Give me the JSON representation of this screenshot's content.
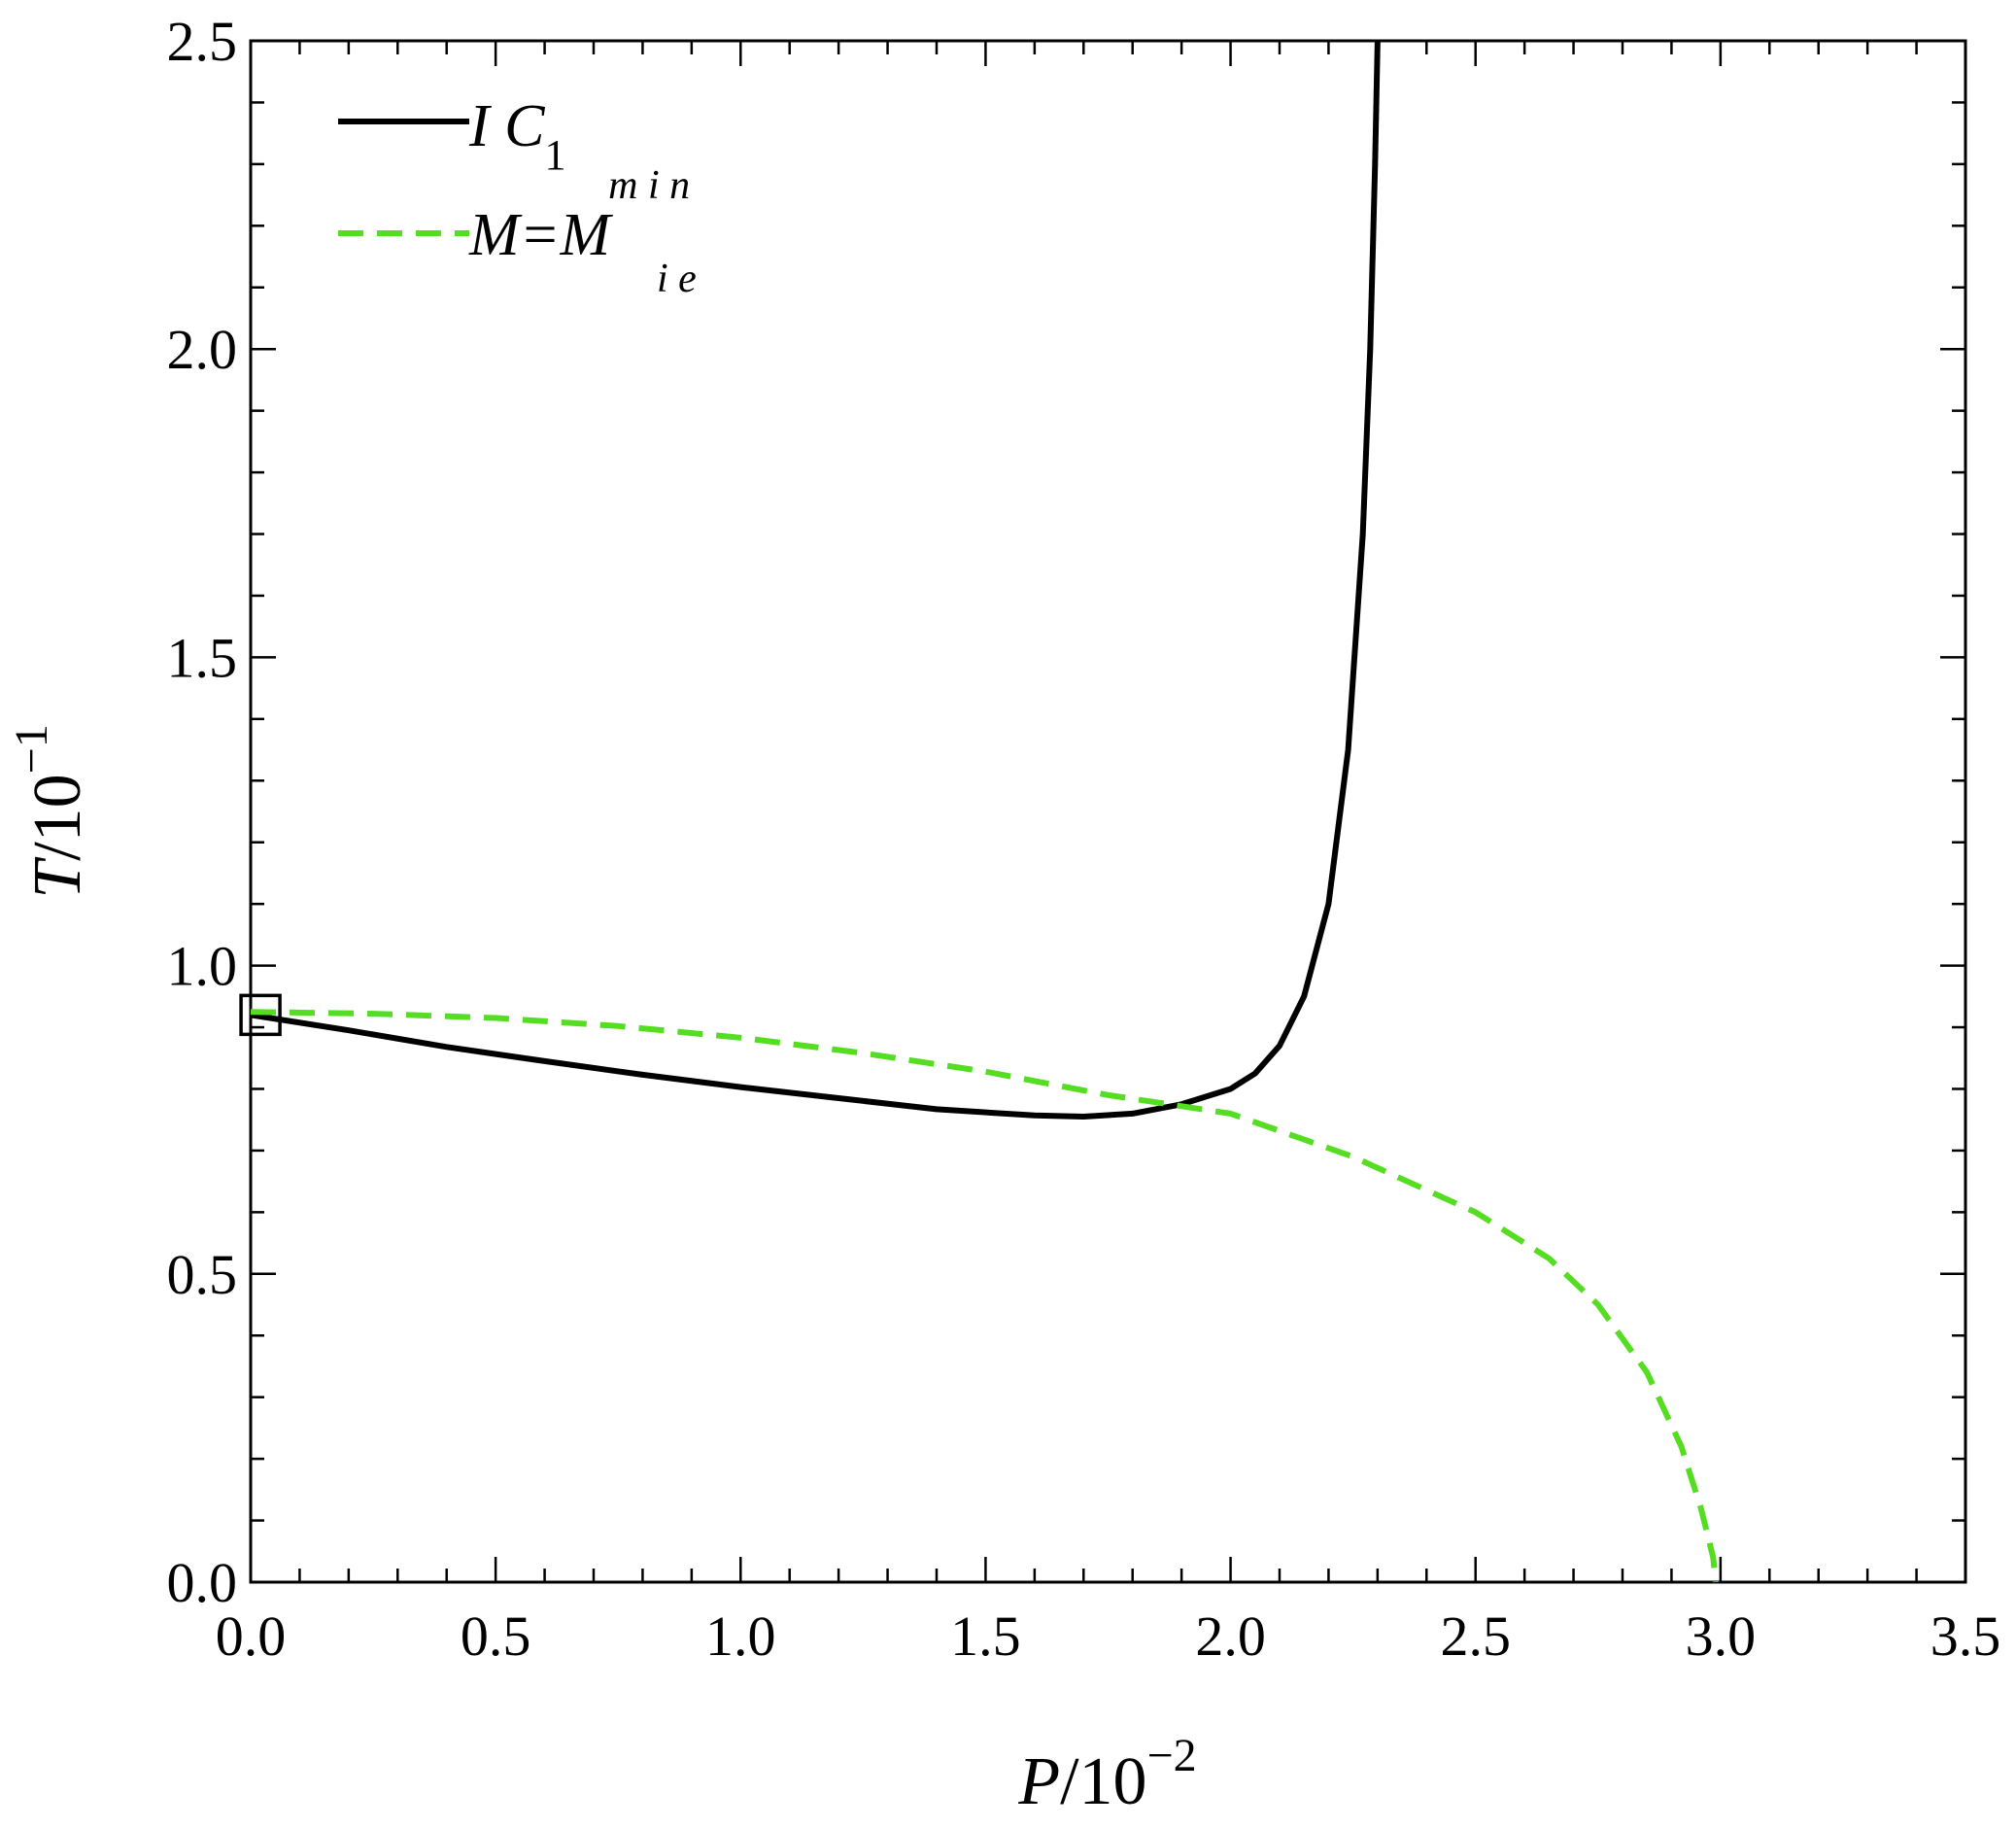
{
  "chart_data": {
    "type": "line",
    "xlabel": {
      "var": "P",
      "base": "/10",
      "exp": "−2"
    },
    "ylabel": {
      "var": "T",
      "base": "/10",
      "exp": "−1"
    },
    "xlim": [
      0,
      3.5
    ],
    "ylim": [
      0,
      2.5
    ],
    "xticks": [
      {
        "v": 0,
        "label": "0.0"
      },
      {
        "v": 0.5,
        "label": "0.5"
      },
      {
        "v": 1.0,
        "label": "1.0"
      },
      {
        "v": 1.5,
        "label": "1.5"
      },
      {
        "v": 2.0,
        "label": "2.0"
      },
      {
        "v": 2.5,
        "label": "2.5"
      },
      {
        "v": 3.0,
        "label": "3.0"
      },
      {
        "v": 3.5,
        "label": "3.5"
      }
    ],
    "yticks": [
      {
        "v": 0,
        "label": "0.0"
      },
      {
        "v": 0.5,
        "label": "0.5"
      },
      {
        "v": 1.0,
        "label": "1.0"
      },
      {
        "v": 1.5,
        "label": "1.5"
      },
      {
        "v": 2.0,
        "label": "2.0"
      },
      {
        "v": 2.5,
        "label": "2.5"
      }
    ],
    "x_minor_step": 0.1,
    "y_minor_step": 0.1,
    "grid": false,
    "legend_position": "top-left",
    "series": [
      {
        "name": "I C",
        "name_sub": "1",
        "style": "solid",
        "color": "#000000",
        "points": [
          [
            0.0,
            0.92
          ],
          [
            0.2,
            0.895
          ],
          [
            0.4,
            0.868
          ],
          [
            0.6,
            0.845
          ],
          [
            0.8,
            0.823
          ],
          [
            1.0,
            0.803
          ],
          [
            1.2,
            0.785
          ],
          [
            1.4,
            0.767
          ],
          [
            1.6,
            0.757
          ],
          [
            1.7,
            0.755
          ],
          [
            1.8,
            0.76
          ],
          [
            1.9,
            0.775
          ],
          [
            2.0,
            0.8
          ],
          [
            2.05,
            0.825
          ],
          [
            2.1,
            0.87
          ],
          [
            2.15,
            0.95
          ],
          [
            2.2,
            1.1
          ],
          [
            2.24,
            1.35
          ],
          [
            2.27,
            1.7
          ],
          [
            2.285,
            2.0
          ],
          [
            2.295,
            2.3
          ],
          [
            2.3,
            2.5
          ]
        ]
      },
      {
        "name": "M=M",
        "name_sub": "i e",
        "name_sup": "m i n",
        "style": "dashed",
        "color": "#55dd22",
        "points": [
          [
            0.0,
            0.925
          ],
          [
            0.25,
            0.922
          ],
          [
            0.5,
            0.915
          ],
          [
            0.75,
            0.902
          ],
          [
            1.0,
            0.883
          ],
          [
            1.25,
            0.858
          ],
          [
            1.5,
            0.828
          ],
          [
            1.75,
            0.79
          ],
          [
            2.0,
            0.76
          ],
          [
            2.25,
            0.69
          ],
          [
            2.5,
            0.6
          ],
          [
            2.65,
            0.525
          ],
          [
            2.75,
            0.45
          ],
          [
            2.85,
            0.34
          ],
          [
            2.92,
            0.22
          ],
          [
            2.96,
            0.12
          ],
          [
            2.985,
            0.04
          ],
          [
            2.99,
            0.0
          ]
        ]
      }
    ],
    "marker": {
      "shape": "square",
      "x": 0.02,
      "y": 0.92
    }
  }
}
